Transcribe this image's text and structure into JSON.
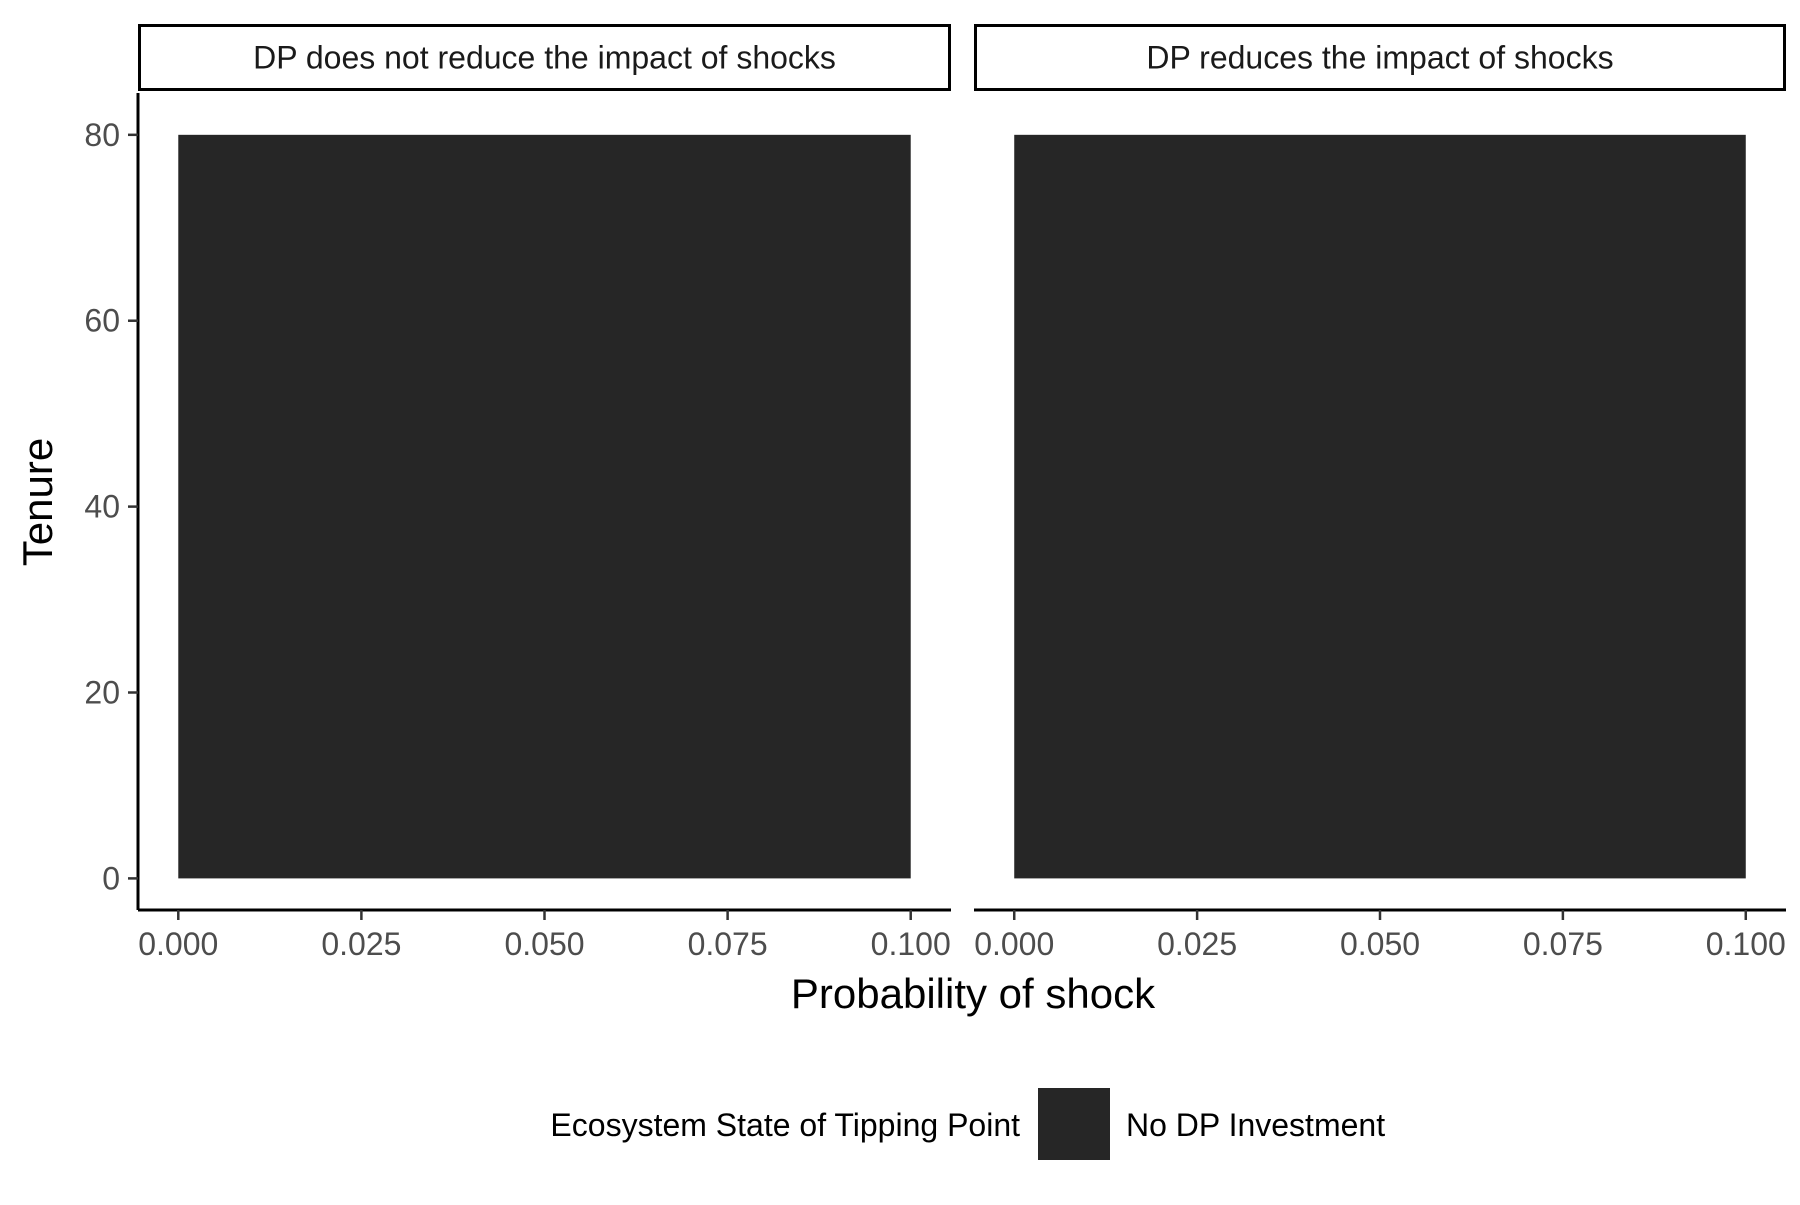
{
  "chart_data": {
    "type": "heatmap",
    "facets": [
      {
        "strip_label": "DP does not reduce the impact of shocks",
        "tiles": [
          {
            "x_min": 0.0,
            "x_max": 0.1,
            "y_min": 0,
            "y_max": 80,
            "category": "No DP Investment"
          }
        ]
      },
      {
        "strip_label": "DP reduces the impact of shocks",
        "tiles": [
          {
            "x_min": 0.0,
            "x_max": 0.1,
            "y_min": 0,
            "y_max": 80,
            "category": "No DP Investment"
          }
        ]
      }
    ],
    "xlabel": "Probability of shock",
    "ylabel": "Tenure",
    "x_ticks": [
      0.0,
      0.025,
      0.05,
      0.075,
      0.1
    ],
    "x_tick_labels": [
      "0.000",
      "0.025",
      "0.050",
      "0.075",
      "0.100"
    ],
    "y_ticks": [
      0,
      20,
      40,
      60,
      80
    ],
    "y_tick_labels": [
      "0",
      "20",
      "40",
      "60",
      "80"
    ],
    "xlim": [
      -0.0055,
      0.1055
    ],
    "ylim": [
      -3.4,
      84.5
    ],
    "grid": false,
    "legend": {
      "title": "Ecosystem State of Tipping Point",
      "placement": "bottom",
      "entries": [
        {
          "label": "No DP Investment",
          "color": "#262626"
        }
      ]
    },
    "colors": {
      "No DP Investment": "#262626"
    }
  }
}
